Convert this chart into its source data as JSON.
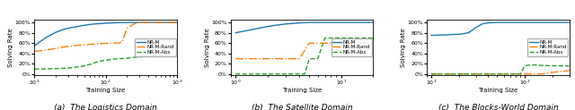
{
  "subplots": [
    {
      "title": "(a)  The Logistics Domain",
      "xlabel": "Training Size",
      "ylabel": "Solving Rate",
      "xscale": "log",
      "xlim": [
        10,
        1000
      ],
      "ylim": [
        -0.01,
        1.05
      ],
      "yticks": [
        0.0,
        0.2,
        0.4,
        0.6,
        0.8,
        1.0
      ],
      "yticklabels": [
        "0%",
        "20%",
        "40%",
        "60%",
        "80%",
        "100%"
      ],
      "xticks": [
        10,
        100,
        1000
      ],
      "xticklabels": [
        "$10^1$",
        "$10^2$",
        "$10^3$"
      ],
      "series": [
        {
          "label": "NR-M",
          "color": "#1f77b4",
          "linestyle": "-",
          "x": [
            10,
            12,
            15,
            20,
            25,
            30,
            40,
            50,
            60,
            70,
            80,
            100,
            120,
            150,
            200,
            250,
            300,
            400,
            500,
            700,
            1000
          ],
          "y": [
            0.55,
            0.63,
            0.72,
            0.81,
            0.86,
            0.89,
            0.92,
            0.945,
            0.96,
            0.97,
            0.975,
            0.985,
            0.99,
            0.995,
            0.998,
            1.0,
            1.0,
            1.0,
            1.0,
            1.0,
            1.0
          ]
        },
        {
          "label": "NR-M-Rand",
          "color": "#ff7f0e",
          "linestyle": "-.",
          "x": [
            10,
            15,
            20,
            30,
            50,
            70,
            100,
            130,
            150,
            170,
            200,
            250,
            300,
            400,
            500,
            700,
            1000
          ],
          "y": [
            0.44,
            0.47,
            0.5,
            0.54,
            0.57,
            0.585,
            0.595,
            0.6,
            0.6,
            0.62,
            0.88,
            0.97,
            1.0,
            1.0,
            1.0,
            1.0,
            1.0
          ]
        },
        {
          "label": "NR-M-Abs",
          "color": "#2ca02c",
          "linestyle": "--",
          "x": [
            10,
            15,
            20,
            25,
            30,
            40,
            50,
            60,
            70,
            80,
            100,
            120,
            150,
            200,
            250,
            300,
            400,
            500,
            700,
            1000
          ],
          "y": [
            0.1,
            0.105,
            0.11,
            0.115,
            0.12,
            0.14,
            0.16,
            0.19,
            0.22,
            0.25,
            0.27,
            0.29,
            0.3,
            0.31,
            0.325,
            0.335,
            0.35,
            0.365,
            0.375,
            0.385
          ]
        }
      ]
    },
    {
      "title": "(b)  The Satellite Domain",
      "xlabel": "Training Size",
      "ylabel": "Solving Rate",
      "xscale": "log",
      "xlim": [
        0.9,
        20
      ],
      "ylim": [
        -0.01,
        1.05
      ],
      "yticks": [
        0.0,
        0.2,
        0.4,
        0.6,
        0.8,
        1.0
      ],
      "yticklabels": [
        "0%",
        "20%",
        "40%",
        "60%",
        "80%",
        "100%"
      ],
      "xticks": [
        1,
        10
      ],
      "xticklabels": [
        "$10^0$",
        "$10^1$"
      ],
      "series": [
        {
          "label": "NR-M",
          "color": "#1f77b4",
          "linestyle": "-",
          "x": [
            1,
            1.5,
            2,
            2.5,
            3,
            4,
            5,
            6,
            7,
            8,
            10,
            15,
            20
          ],
          "y": [
            0.8,
            0.87,
            0.92,
            0.95,
            0.97,
            0.99,
            1.0,
            1.0,
            1.0,
            1.0,
            1.0,
            1.0,
            1.0
          ]
        },
        {
          "label": "NR-M-Rand",
          "color": "#ff7f0e",
          "linestyle": "-.",
          "x": [
            1,
            1.5,
            2,
            2.5,
            3,
            4,
            5,
            6,
            7,
            8,
            10,
            15,
            20
          ],
          "y": [
            0.3,
            0.3,
            0.3,
            0.3,
            0.3,
            0.3,
            0.6,
            0.6,
            0.6,
            0.6,
            0.6,
            0.6,
            0.6
          ]
        },
        {
          "label": "NR-M-Abs",
          "color": "#2ca02c",
          "linestyle": "--",
          "x": [
            1,
            1.5,
            2,
            2.5,
            3,
            4,
            4.5,
            5,
            5.5,
            6,
            7,
            8,
            10,
            15,
            20
          ],
          "y": [
            0.005,
            0.005,
            0.005,
            0.005,
            0.005,
            0.005,
            0.005,
            0.3,
            0.3,
            0.3,
            0.7,
            0.7,
            0.7,
            0.7,
            0.7
          ]
        }
      ]
    },
    {
      "title": "(c)  The Blocks-World Domain",
      "xlabel": "Training Size",
      "ylabel": "Solving Rate",
      "xscale": "log",
      "xlim": [
        9,
        300
      ],
      "ylim": [
        -0.01,
        1.05
      ],
      "yticks": [
        0.0,
        0.2,
        0.4,
        0.6,
        0.8,
        1.0
      ],
      "yticklabels": [
        "0%",
        "20%",
        "40%",
        "60%",
        "80%",
        "100%"
      ],
      "xticks": [
        10,
        100
      ],
      "xticklabels": [
        "$10^1$",
        "$10^2$"
      ],
      "series": [
        {
          "label": "NR-M",
          "color": "#1f77b4",
          "linestyle": "-",
          "x": [
            10,
            12,
            15,
            18,
            20,
            25,
            30,
            35,
            40,
            50,
            60,
            70,
            100,
            150,
            200,
            300
          ],
          "y": [
            0.75,
            0.755,
            0.76,
            0.77,
            0.77,
            0.8,
            0.9,
            0.97,
            0.99,
            1.0,
            1.0,
            1.0,
            1.0,
            1.0,
            1.0,
            1.0
          ]
        },
        {
          "label": "NR-M-Rand",
          "color": "#ff7f0e",
          "linestyle": "-.",
          "x": [
            10,
            20,
            30,
            50,
            70,
            100,
            120,
            130,
            150,
            200,
            300
          ],
          "y": [
            0.005,
            0.005,
            0.005,
            0.005,
            0.005,
            0.005,
            0.005,
            0.005,
            0.005,
            0.04,
            0.07
          ]
        },
        {
          "label": "NR-M-Abs",
          "color": "#2ca02c",
          "linestyle": "--",
          "x": [
            10,
            20,
            30,
            50,
            70,
            80,
            90,
            100,
            110,
            120,
            130,
            150,
            200,
            300
          ],
          "y": [
            0.005,
            0.005,
            0.005,
            0.005,
            0.005,
            0.005,
            0.005,
            0.16,
            0.175,
            0.18,
            0.18,
            0.17,
            0.165,
            0.16
          ]
        }
      ]
    }
  ],
  "legend_loc": "center right",
  "line_width": 1.0,
  "background_color": "#ffffff"
}
